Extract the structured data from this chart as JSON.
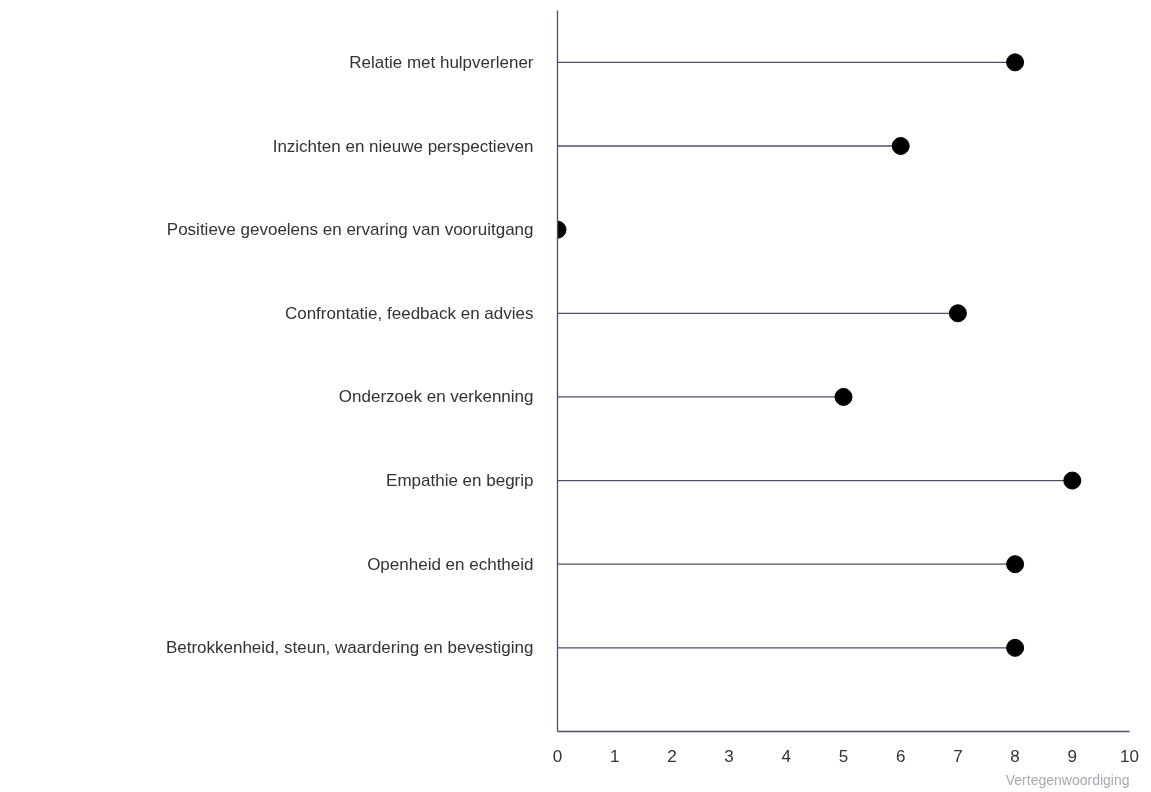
{
  "chart_data": {
    "type": "lollipop",
    "orientation": "horizontal",
    "xlabel": "Vertegenwoordiging",
    "categories": [
      "Relatie met hulpverlener",
      "Inzichten en nieuwe perspectieven",
      "Positieve gevoelens en ervaring van vooruitgang",
      "Confrontatie, feedback en advies",
      "Onderzoek en verkenning",
      "Empathie en begrip",
      "Openheid en echtheid",
      "Betrokkenheid, steun, waardering en bevestiging"
    ],
    "values": [
      8,
      6,
      0,
      7,
      5,
      9,
      8,
      8
    ],
    "color": "#000000",
    "marker": "circle",
    "xlim": [
      0,
      10
    ],
    "xticks": [
      0,
      1,
      2,
      3,
      4,
      5,
      6,
      7,
      8,
      9,
      10
    ]
  }
}
